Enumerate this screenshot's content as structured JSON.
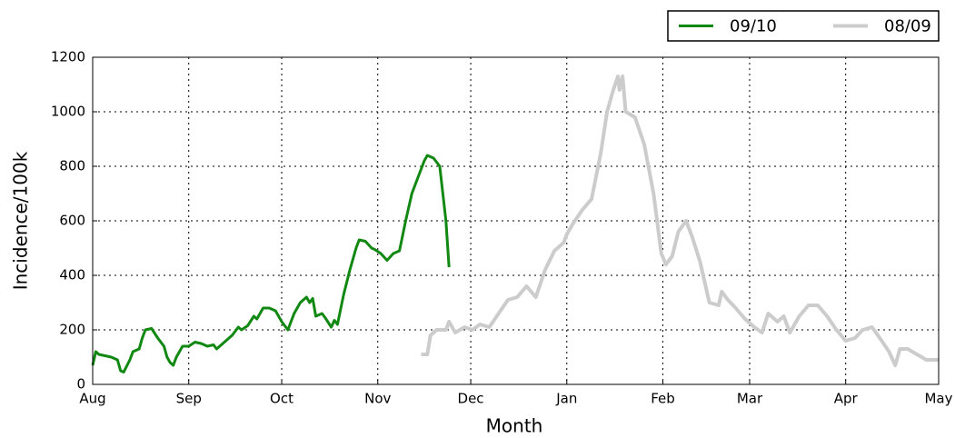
{
  "chart_data": {
    "type": "line",
    "x_label": "Month",
    "y_label": "Incidence/100k",
    "xlim": [
      0,
      273
    ],
    "xticks": [
      {
        "value": 0,
        "label": "Aug"
      },
      {
        "value": 31,
        "label": "Sep"
      },
      {
        "value": 61,
        "label": "Oct"
      },
      {
        "value": 92,
        "label": "Nov"
      },
      {
        "value": 122,
        "label": "Dec"
      },
      {
        "value": 153,
        "label": "Jan"
      },
      {
        "value": 184,
        "label": "Feb"
      },
      {
        "value": 212,
        "label": "Mar"
      },
      {
        "value": 243,
        "label": "Apr"
      },
      {
        "value": 273,
        "label": "May"
      }
    ],
    "ylim": [
      0,
      1200
    ],
    "yticks": [
      0,
      200,
      400,
      600,
      800,
      1000,
      1200
    ],
    "grid": true,
    "legend": "above-right",
    "series": [
      {
        "name": "09/10",
        "color": "#118811",
        "width": 3,
        "x": [
          0,
          1,
          2,
          4,
          6,
          8,
          9,
          10,
          12,
          13,
          15,
          16,
          17,
          19,
          21,
          23,
          24,
          25,
          26,
          27,
          29,
          31,
          33,
          35,
          37,
          39,
          40,
          42,
          43,
          45,
          47,
          48,
          50,
          52,
          53,
          55,
          57,
          59,
          61,
          63,
          65,
          67,
          68,
          69,
          70,
          71,
          72,
          74,
          75,
          77,
          78,
          79,
          81,
          83,
          85,
          86,
          88,
          90,
          91,
          93,
          95,
          97,
          99,
          101,
          103,
          105,
          107,
          108,
          110,
          112,
          114,
          115
        ],
        "values": [
          70,
          120,
          110,
          105,
          100,
          90,
          50,
          45,
          90,
          120,
          130,
          170,
          200,
          205,
          170,
          140,
          100,
          80,
          70,
          100,
          140,
          140,
          155,
          150,
          140,
          145,
          130,
          150,
          160,
          180,
          210,
          200,
          215,
          250,
          240,
          280,
          280,
          270,
          230,
          200,
          260,
          300,
          310,
          320,
          300,
          315,
          250,
          260,
          245,
          210,
          235,
          220,
          330,
          420,
          500,
          530,
          525,
          500,
          495,
          480,
          455,
          480,
          490,
          600,
          700,
          760,
          820,
          840,
          830,
          800,
          600,
          430
        ]
      },
      {
        "name": "08/09",
        "color": "#cccccc",
        "width": 4,
        "x": [
          106,
          108,
          109,
          111,
          114,
          115,
          117,
          120,
          122.5,
          125,
          128,
          131,
          134,
          137,
          140,
          143,
          146,
          149,
          152,
          153,
          155,
          158,
          161,
          164,
          166,
          168,
          169.5,
          170,
          171,
          172,
          175,
          178,
          181,
          183.5,
          185,
          187,
          189,
          191.5,
          193.5,
          196,
          199,
          202,
          203,
          205,
          207.5,
          210.5,
          213.5,
          216,
          218,
          221,
          223,
          225,
          228,
          231,
          234,
          237,
          240,
          243,
          246,
          248.5,
          251.5,
          254,
          257,
          259,
          260.5,
          263,
          266,
          269,
          273
        ],
        "values": [
          110,
          110,
          180,
          200,
          200,
          230,
          190,
          210,
          200,
          220,
          210,
          260,
          310,
          320,
          360,
          320,
          420,
          490,
          520,
          550,
          590,
          640,
          680,
          850,
          1000,
          1080,
          1130,
          1080,
          1130,
          1000,
          980,
          880,
          700,
          480,
          440,
          470,
          560,
          600,
          540,
          450,
          300,
          290,
          340,
          310,
          280,
          240,
          210,
          190,
          260,
          230,
          250,
          190,
          250,
          290,
          290,
          250,
          200,
          160,
          170,
          200,
          210,
          170,
          120,
          70,
          130,
          130,
          110,
          90,
          90
        ]
      }
    ]
  }
}
